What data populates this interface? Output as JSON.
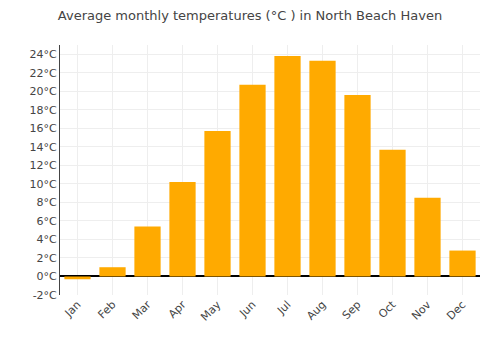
{
  "chart_data": {
    "type": "bar",
    "title": "Average monthly temperatures (°C ) in North Beach Haven",
    "categories": [
      "Jan",
      "Feb",
      "Mar",
      "Apr",
      "May",
      "Jun",
      "Jul",
      "Aug",
      "Sep",
      "Oct",
      "Nov",
      "Dec"
    ],
    "values": [
      -0.3,
      1.0,
      5.4,
      10.2,
      15.7,
      20.7,
      23.8,
      23.3,
      19.6,
      13.7,
      8.5,
      2.8
    ],
    "color": "#FFAA00",
    "ylim": [
      -2,
      25
    ],
    "yticks": [
      {
        "value": -2,
        "label": "-2°C"
      },
      {
        "value": 0,
        "label": "0°C"
      },
      {
        "value": 2,
        "label": "2°C"
      },
      {
        "value": 4,
        "label": "4°C"
      },
      {
        "value": 6,
        "label": "6°C"
      },
      {
        "value": 8,
        "label": "8°C"
      },
      {
        "value": 10,
        "label": "10°C"
      },
      {
        "value": 12,
        "label": "12°C"
      },
      {
        "value": 14,
        "label": "14°C"
      },
      {
        "value": 16,
        "label": "16°C"
      },
      {
        "value": 18,
        "label": "18°C"
      },
      {
        "value": 20,
        "label": "20°C"
      },
      {
        "value": 22,
        "label": "22°C"
      },
      {
        "value": 24,
        "label": "24°C"
      }
    ],
    "grid": true
  }
}
